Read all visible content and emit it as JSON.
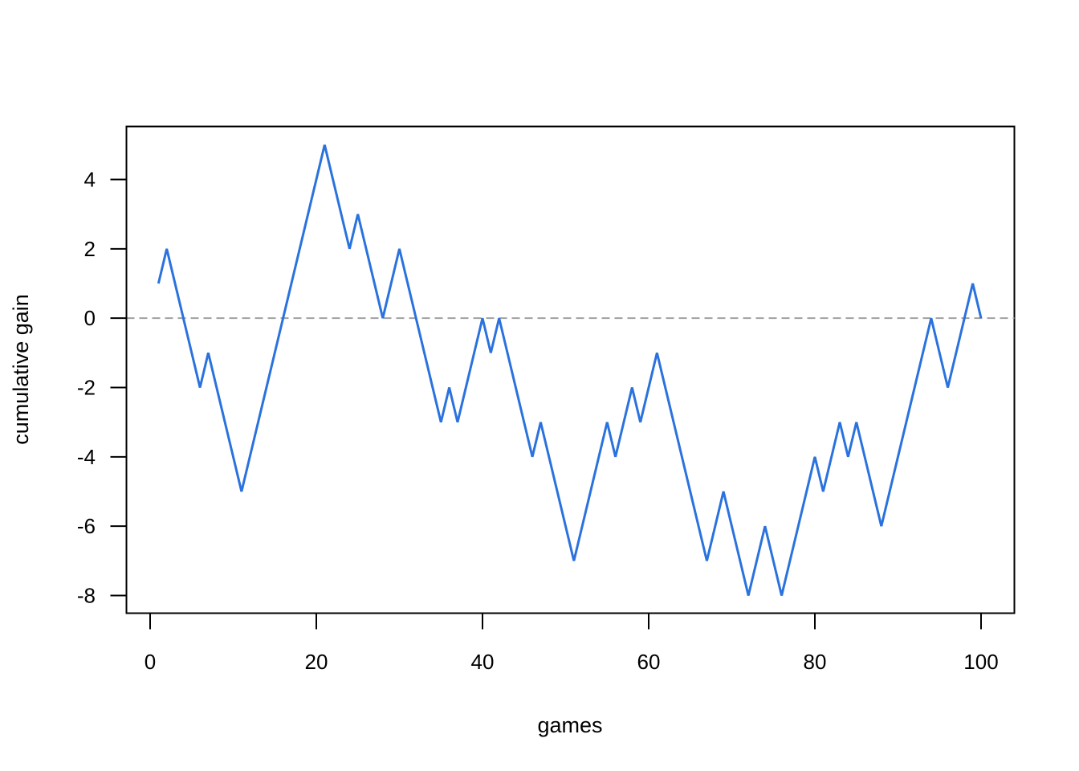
{
  "chart_data": {
    "type": "line",
    "title": "",
    "xlabel": "games",
    "ylabel": "cumulative gain",
    "xlim": [
      1,
      100
    ],
    "ylim": [
      -8,
      5
    ],
    "x_ticks": [
      0,
      20,
      40,
      60,
      80,
      100
    ],
    "y_ticks": [
      4,
      2,
      0,
      -2,
      -4,
      -6,
      -8
    ],
    "grid": false,
    "legend": "none",
    "reference_line": {
      "y": 0,
      "style": "dashed",
      "color": "#a0a0a0"
    },
    "series": [
      {
        "color": "#2a72de",
        "x": [
          1,
          2,
          3,
          4,
          5,
          6,
          7,
          8,
          9,
          10,
          11,
          12,
          13,
          14,
          15,
          16,
          17,
          18,
          19,
          20,
          21,
          22,
          23,
          24,
          25,
          26,
          27,
          28,
          29,
          30,
          31,
          32,
          33,
          34,
          35,
          36,
          37,
          38,
          39,
          40,
          41,
          42,
          43,
          44,
          45,
          46,
          47,
          48,
          49,
          50,
          51,
          52,
          53,
          54,
          55,
          56,
          57,
          58,
          59,
          60,
          61,
          62,
          63,
          64,
          65,
          66,
          67,
          68,
          69,
          70,
          71,
          72,
          73,
          74,
          75,
          76,
          77,
          78,
          79,
          80,
          81,
          82,
          83,
          84,
          85,
          86,
          87,
          88,
          89,
          90,
          91,
          92,
          93,
          94,
          95,
          96,
          97,
          98,
          99,
          100
        ],
        "values": [
          1,
          2,
          1,
          0,
          -1,
          -2,
          -1,
          -2,
          -3,
          -4,
          -5,
          -4,
          -3,
          -2,
          -1,
          0,
          1,
          2,
          3,
          4,
          5,
          4,
          3,
          2,
          3,
          2,
          1,
          0,
          1,
          2,
          1,
          0,
          -1,
          -2,
          -3,
          -2,
          -3,
          -2,
          -1,
          0,
          -1,
          0,
          -1,
          -2,
          -3,
          -4,
          -3,
          -4,
          -5,
          -6,
          -7,
          -6,
          -5,
          -4,
          -3,
          -4,
          -3,
          -2,
          -3,
          -2,
          -1,
          -2,
          -3,
          -4,
          -5,
          -6,
          -7,
          -6,
          -5,
          -6,
          -7,
          -8,
          -7,
          -6,
          -7,
          -8,
          -7,
          -6,
          -5,
          -4,
          -5,
          -4,
          -3,
          -4,
          -3,
          -4,
          -5,
          -6,
          -5,
          -4,
          -3,
          -2,
          -1,
          0,
          -1,
          -2,
          -1,
          0,
          1,
          0
        ]
      }
    ]
  }
}
